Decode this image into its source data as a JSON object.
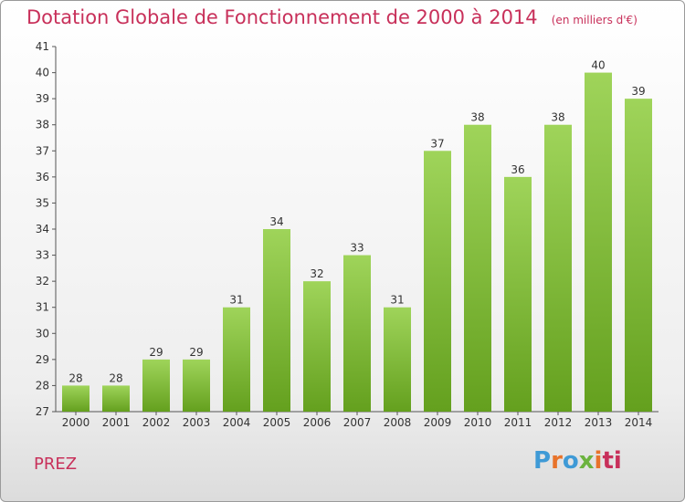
{
  "title": "Dotation Globale de Fonctionnement de 2000 à 2014",
  "unit_note": "(en milliers d'€)",
  "commune": "PREZ",
  "logo_text": "Proxiti",
  "colors": {
    "accent": "#c8305a",
    "bar_top": "#9fd45a",
    "bar_bottom": "#64a01e"
  },
  "chart_data": {
    "type": "bar",
    "categories": [
      "2000",
      "2001",
      "2002",
      "2003",
      "2004",
      "2005",
      "2006",
      "2007",
      "2008",
      "2009",
      "2010",
      "2011",
      "2012",
      "2013",
      "2014"
    ],
    "values": [
      28,
      28,
      29,
      29,
      31,
      34,
      32,
      33,
      31,
      37,
      38,
      36,
      38,
      40,
      39
    ],
    "ylim": [
      27,
      41
    ],
    "yticks": [
      27,
      28,
      29,
      30,
      31,
      32,
      33,
      34,
      35,
      36,
      37,
      38,
      39,
      40,
      41
    ],
    "grid": false,
    "legend": "none"
  }
}
